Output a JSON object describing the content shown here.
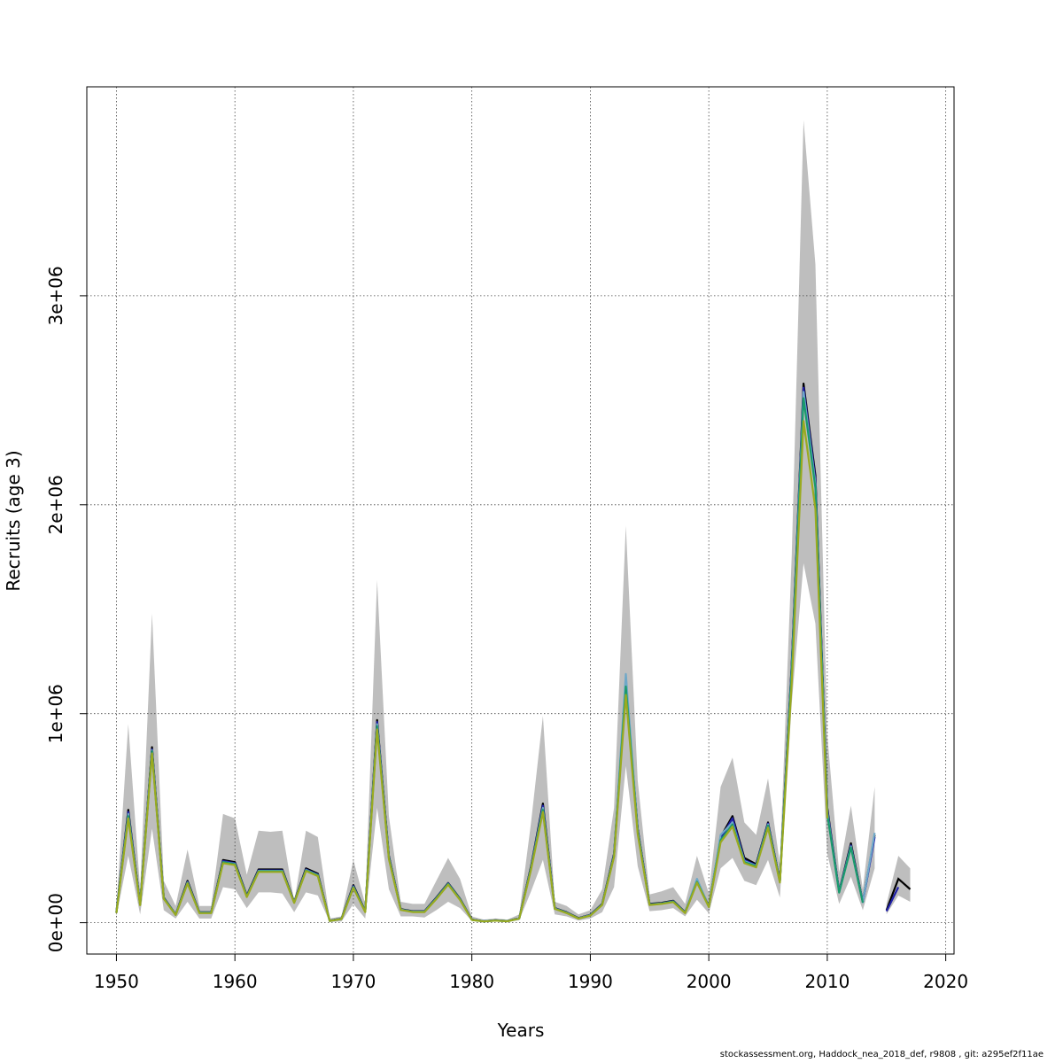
{
  "chart_data": {
    "type": "line",
    "title": "",
    "xlabel": "Years",
    "ylabel": "Recruits (age 3)",
    "xlim": [
      1947.5,
      2020.7
    ],
    "ylim": [
      -150000,
      4000000
    ],
    "xticks": [
      1950,
      1960,
      1970,
      1980,
      1990,
      2000,
      2010,
      2020
    ],
    "yticks": [
      0,
      1000000,
      2000000,
      3000000
    ],
    "xtick_labels": [
      "1950",
      "1960",
      "1970",
      "1980",
      "1990",
      "2000",
      "2010",
      "2020"
    ],
    "ytick_labels": [
      "0e+00",
      "1e+06",
      "2e+06",
      "3e+06"
    ],
    "grid": true,
    "legend": "none",
    "band_color": "#bebebe",
    "years": [
      1950,
      1951,
      1952,
      1953,
      1954,
      1955,
      1956,
      1957,
      1958,
      1959,
      1960,
      1961,
      1962,
      1963,
      1964,
      1965,
      1966,
      1967,
      1968,
      1969,
      1970,
      1971,
      1972,
      1973,
      1974,
      1975,
      1976,
      1977,
      1978,
      1979,
      1980,
      1981,
      1982,
      1983,
      1984,
      1985,
      1986,
      1987,
      1988,
      1989,
      1990,
      1991,
      1992,
      1993,
      1994,
      1995,
      1996,
      1997,
      1998,
      1999,
      2000,
      2001,
      2002,
      2003,
      2004,
      2005,
      2006,
      2007,
      2008,
      2009,
      2010,
      2011,
      2012,
      2013,
      2014
    ],
    "band_upper": [
      70000,
      950000,
      160000,
      1480000,
      200000,
      80000,
      350000,
      80000,
      80000,
      520000,
      500000,
      230000,
      440000,
      435000,
      440000,
      100000,
      440000,
      410000,
      20000,
      30000,
      300000,
      90000,
      1640000,
      510000,
      100000,
      90000,
      90000,
      200000,
      310000,
      210000,
      30000,
      15000,
      20000,
      15000,
      40000,
      480000,
      990000,
      100000,
      80000,
      40000,
      60000,
      160000,
      550000,
      1900000,
      680000,
      135000,
      150000,
      170000,
      90000,
      320000,
      140000,
      650000,
      790000,
      480000,
      420000,
      690000,
      280000,
      1760000,
      3840000,
      3150000,
      900000,
      240000,
      560000,
      160000,
      650000
    ],
    "band_lower": [
      30000,
      320000,
      40000,
      450000,
      60000,
      20000,
      100000,
      20000,
      20000,
      170000,
      160000,
      70000,
      145000,
      145000,
      140000,
      50000,
      145000,
      130000,
      3000,
      6000,
      90000,
      20000,
      550000,
      160000,
      30000,
      30000,
      25000,
      60000,
      100000,
      70000,
      8000,
      4000,
      7000,
      4000,
      12000,
      150000,
      300000,
      40000,
      30000,
      10000,
      20000,
      50000,
      170000,
      750000,
      270000,
      55000,
      60000,
      70000,
      30000,
      110000,
      45000,
      260000,
      310000,
      200000,
      180000,
      300000,
      120000,
      1050000,
      1720000,
      1430000,
      330000,
      90000,
      220000,
      60000,
      260000
    ],
    "series": [
      {
        "color": "#000000",
        "values": [
          50000,
          540000,
          90000,
          840000,
          120000,
          40000,
          200000,
          50000,
          50000,
          300000,
          290000,
          130000,
          255000,
          255000,
          255000,
          100000,
          260000,
          235000,
          10000,
          20000,
          180000,
          55000,
          970000,
          320000,
          65000,
          55000,
          55000,
          120000,
          190000,
          115000,
          15000,
          7000,
          12000,
          8000,
          22000,
          270000,
          570000,
          70000,
          50000,
          22000,
          38000,
          90000,
          330000,
          1140000,
          450000,
          90000,
          95000,
          105000,
          50000,
          200000,
          80000,
          410000,
          510000,
          310000,
          280000,
          480000,
          200000,
          1240000,
          2580000,
          2140000,
          550000,
          150000,
          380000,
          100000,
          420000
        ],
        "tail_years": [
          2015,
          2016,
          2017
        ],
        "tail_values": [
          60000,
          210000,
          160000
        ]
      },
      {
        "color": "#1f1fa8",
        "values": [
          48000,
          530000,
          88000,
          830000,
          118000,
          39000,
          195000,
          49000,
          49000,
          295000,
          285000,
          128000,
          250000,
          250000,
          250000,
          98000,
          255000,
          230000,
          9000,
          19000,
          175000,
          54000,
          960000,
          315000,
          64000,
          54000,
          54000,
          118000,
          188000,
          113000,
          14000,
          7000,
          11000,
          8000,
          21000,
          265000,
          560000,
          69000,
          49000,
          21000,
          37000,
          88000,
          325000,
          1120000,
          445000,
          88000,
          93000,
          103000,
          49000,
          195000,
          78000,
          400000,
          500000,
          300000,
          275000,
          475000,
          198000,
          1230000,
          2560000,
          2120000,
          540000,
          148000,
          370000,
          99000,
          410000
        ],
        "tail_years": [
          2015,
          2016
        ],
        "tail_values": [
          55000,
          170000
        ]
      },
      {
        "color": "#6fa8c8",
        "values": [
          49000,
          520000,
          87000,
          825000,
          117000,
          39000,
          193000,
          48000,
          48000,
          290000,
          282000,
          126000,
          248000,
          248000,
          248000,
          97000,
          252000,
          228000,
          9000,
          19000,
          172000,
          53000,
          950000,
          312000,
          63000,
          53000,
          53000,
          116000,
          186000,
          112000,
          14000,
          7000,
          11000,
          8000,
          21000,
          262000,
          550000,
          68000,
          48000,
          21000,
          36000,
          87000,
          322000,
          1190000,
          440000,
          87000,
          92000,
          102000,
          48000,
          210000,
          77000,
          420000,
          480000,
          295000,
          272000,
          470000,
          196000,
          1220000,
          2540000,
          2100000,
          530000,
          146000,
          365000,
          98000,
          430000
        ]
      },
      {
        "color": "#1a9a6c",
        "values": [
          47000,
          510000,
          86000,
          820000,
          116000,
          38000,
          190000,
          47000,
          47000,
          290000,
          280000,
          125000,
          246000,
          246000,
          246000,
          96000,
          250000,
          226000,
          8000,
          18000,
          170000,
          52000,
          940000,
          310000,
          62000,
          52000,
          52000,
          115000,
          185000,
          111000,
          13000,
          6000,
          10000,
          7000,
          20000,
          260000,
          540000,
          67000,
          47000,
          20000,
          35000,
          86000,
          320000,
          1130000,
          435000,
          86000,
          91000,
          101000,
          47000,
          196000,
          76000,
          395000,
          470000,
          290000,
          270000,
          465000,
          195000,
          1200000,
          2510000,
          2080000,
          520000,
          144000,
          360000,
          96000
        ]
      },
      {
        "color": "#9aaa20",
        "values": [
          46000,
          500000,
          84000,
          810000,
          114000,
          37000,
          188000,
          46000,
          46000,
          285000,
          276000,
          123000,
          243000,
          243000,
          243000,
          95000,
          247000,
          223000,
          8000,
          18000,
          167000,
          51000,
          925000,
          305000,
          61000,
          51000,
          51000,
          113000,
          182000,
          109000,
          13000,
          6000,
          10000,
          7000,
          20000,
          255000,
          530000,
          66000,
          46000,
          20000,
          34000,
          85000,
          315000,
          1090000,
          425000,
          85000,
          90000,
          99000,
          46000,
          192000,
          75000,
          385000,
          460000,
          285000,
          265000,
          455000,
          192000,
          1150000,
          2400000,
          1980000,
          500000
        ]
      }
    ]
  },
  "footer": "stockassessment.org, Haddock_nea_2018_def, r9808 , git: a295ef2f11ae"
}
